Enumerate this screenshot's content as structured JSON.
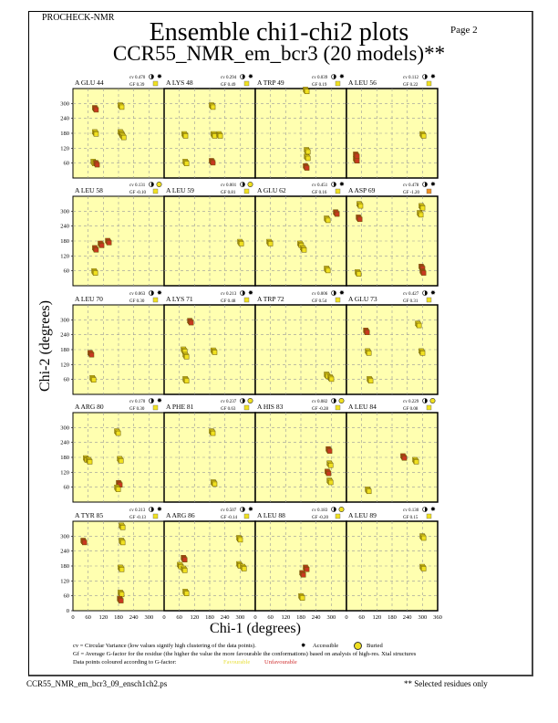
{
  "header": {
    "program": "PROCHECK-NMR",
    "page": "Page  2",
    "title": "Ensemble chi1-chi2 plots",
    "subtitle": "CCR55_NMR_em_bcr3 (20 models)**"
  },
  "colors": {
    "background": "#ffffb0",
    "favourable": "#f0e020",
    "unfavourable": "#c83820",
    "gf_good": "#f0e020",
    "gf_bad": "#f09020"
  },
  "chart_data": {
    "type": "scatter",
    "xlabel": "Chi-1 (degrees)",
    "ylabel": "Chi-2 (degrees)",
    "xlim": [
      0,
      360
    ],
    "ylim": [
      0,
      360
    ],
    "yticks": [
      0,
      60,
      120,
      180,
      240,
      300
    ],
    "xticks": [
      0,
      60,
      120,
      180,
      240,
      300,
      360
    ],
    "grid": true,
    "panels": [
      {
        "residue": "A GLU 44",
        "cv": "cv 0.470",
        "gf": "GF 0.39",
        "access": "accessible",
        "gfq": "good",
        "points": [
          [
            86,
            281,
            "r"
          ],
          [
            86,
            184,
            "y"
          ],
          [
            80,
            65,
            "y"
          ],
          [
            90,
            60,
            "r"
          ],
          [
            187,
            292,
            "y"
          ],
          [
            187,
            184,
            "y"
          ],
          [
            195,
            170,
            "y"
          ]
        ]
      },
      {
        "residue": "A LYS 48",
        "cv": "cv 0.294",
        "gf": "GF 0.49",
        "access": "accessible",
        "gfq": "good",
        "points": [
          [
            79,
            176,
            "y"
          ],
          [
            83,
            65,
            "y"
          ],
          [
            187,
            292,
            "y"
          ],
          [
            194,
            176,
            "y"
          ],
          [
            187,
            68,
            "r"
          ],
          [
            216,
            176,
            "y"
          ]
        ]
      },
      {
        "residue": "A TRP 49",
        "cv": "cv 0.039",
        "gf": "GF 0.19",
        "access": "accessible",
        "gfq": "good",
        "points": [
          [
            198,
            355,
            "y"
          ],
          [
            202,
            86,
            "y"
          ],
          [
            198,
            47,
            "r"
          ],
          [
            202,
            112,
            "y"
          ]
        ]
      },
      {
        "residue": "A LEU 56",
        "cv": "cv 0.112",
        "gf": "GF 0.22",
        "access": "accessible",
        "gfq": "good",
        "points": [
          [
            36,
            76,
            "r"
          ],
          [
            36,
            94,
            "r"
          ],
          [
            299,
            176,
            "y"
          ]
        ]
      },
      {
        "residue": "A LEU 58",
        "cv": "cv 0.131",
        "gf": "GF -0.10",
        "access": "buried",
        "gfq": "good",
        "points": [
          [
            86,
            151,
            "r"
          ],
          [
            108,
            169,
            "r"
          ],
          [
            137,
            180,
            "r"
          ],
          [
            83,
            58,
            "y"
          ]
        ]
      },
      {
        "residue": "A LEU 59",
        "cv": "cv 0.001",
        "gf": "GF 0.81",
        "access": "buried",
        "gfq": "good",
        "points": [
          [
            299,
            176,
            "y"
          ]
        ]
      },
      {
        "residue": "A GLU 62",
        "cv": "cv 0.451",
        "gf": "GF 0.16",
        "access": "accessible",
        "gfq": "good",
        "points": [
          [
            54,
            176,
            "y"
          ],
          [
            176,
            169,
            "y"
          ],
          [
            187,
            151,
            "y"
          ],
          [
            281,
            270,
            "y"
          ],
          [
            281,
            68,
            "y"
          ],
          [
            317,
            295,
            "r"
          ]
        ]
      },
      {
        "residue": "A ASP 69",
        "cv": "cv 0.478",
        "gf": "GF -1.20",
        "access": "accessible",
        "gfq": "bad",
        "points": [
          [
            47,
            274,
            "r"
          ],
          [
            50,
            328,
            "y"
          ],
          [
            43,
            54,
            "y"
          ],
          [
            288,
            292,
            "y"
          ],
          [
            295,
            320,
            "y"
          ],
          [
            295,
            76,
            "r"
          ],
          [
            299,
            58,
            "r"
          ]
        ]
      },
      {
        "residue": "A LEU 70",
        "cv": "cv 0.063",
        "gf": "GF 0.30",
        "access": "accessible",
        "gfq": "good",
        "points": [
          [
            68,
            166,
            "r"
          ],
          [
            76,
            65,
            "y"
          ]
        ]
      },
      {
        "residue": "A LYS 71",
        "cv": "cv 0.213",
        "gf": "GF 0.48",
        "access": "accessible",
        "gfq": "good",
        "points": [
          [
            101,
            295,
            "r"
          ],
          [
            76,
            180,
            "y"
          ],
          [
            83,
            158,
            "y"
          ],
          [
            83,
            61,
            "y"
          ],
          [
            194,
            176,
            "y"
          ]
        ]
      },
      {
        "residue": "A TRP 72",
        "cv": "cv 0.006",
        "gf": "GF 0.54",
        "access": "accessible",
        "gfq": "good",
        "points": [
          [
            281,
            79,
            "y"
          ],
          [
            295,
            68,
            "y"
          ]
        ]
      },
      {
        "residue": "A GLU 73",
        "cv": "cv 0.427",
        "gf": "GF 0.31",
        "access": "accessible",
        "gfq": "good",
        "points": [
          [
            76,
            256,
            "r"
          ],
          [
            83,
            173,
            "y"
          ],
          [
            90,
            61,
            "y"
          ],
          [
            281,
            284,
            "y"
          ],
          [
            295,
            173,
            "y"
          ]
        ]
      },
      {
        "residue": "A ARG 80",
        "cv": "cv 0.170",
        "gf": "GF 0.30",
        "access": "accessible",
        "gfq": "good",
        "points": [
          [
            50,
            176,
            "y"
          ],
          [
            61,
            169,
            "y"
          ],
          [
            173,
            284,
            "y"
          ],
          [
            184,
            173,
            "y"
          ],
          [
            180,
            76,
            "r"
          ],
          [
            173,
            58,
            "y"
          ]
        ]
      },
      {
        "residue": "A PHE 81",
        "cv": "cv 0.237",
        "gf": "GF 0.63",
        "access": "buried",
        "gfq": "good",
        "points": [
          [
            187,
            284,
            "y"
          ],
          [
            194,
            79,
            "y"
          ]
        ]
      },
      {
        "residue": "A HIS 83",
        "cv": "cv 0.082",
        "gf": "GF -0.28",
        "access": "buried",
        "gfq": "good",
        "points": [
          [
            288,
            212,
            "r"
          ],
          [
            292,
            155,
            "y"
          ],
          [
            284,
            122,
            "r"
          ],
          [
            292,
            86,
            "y"
          ]
        ]
      },
      {
        "residue": "A LEU 84",
        "cv": "cv 0.229",
        "gf": "GF 0.08",
        "access": "buried",
        "gfq": "good",
        "points": [
          [
            223,
            184,
            "r"
          ],
          [
            270,
            169,
            "y"
          ],
          [
            83,
            50,
            "y"
          ]
        ]
      },
      {
        "residue": "A TYR 85",
        "cv": "cv 0.313",
        "gf": "GF -0.13",
        "access": "accessible",
        "gfq": "good",
        "points": [
          [
            40,
            281,
            "r"
          ],
          [
            191,
            342,
            "y"
          ],
          [
            191,
            281,
            "y"
          ],
          [
            187,
            173,
            "y"
          ],
          [
            187,
            72,
            "y"
          ],
          [
            184,
            47,
            "r"
          ]
        ]
      },
      {
        "residue": "A ARG 86",
        "cv": "cv 0.507",
        "gf": "GF -0.14",
        "access": "accessible",
        "gfq": "good",
        "points": [
          [
            61,
            184,
            "y"
          ],
          [
            76,
            212,
            "r"
          ],
          [
            76,
            169,
            "y"
          ],
          [
            295,
            292,
            "y"
          ],
          [
            295,
            187,
            "y"
          ],
          [
            310,
            176,
            "y"
          ],
          [
            83,
            76,
            "y"
          ]
        ]
      },
      {
        "residue": "A LEU 88",
        "cv": "cv 0.183",
        "gf": "GF -0.20",
        "access": "buried",
        "gfq": "good",
        "points": [
          [
            184,
            151,
            "r"
          ],
          [
            198,
            173,
            "r"
          ],
          [
            180,
            58,
            "y"
          ]
        ]
      },
      {
        "residue": "A LEU 89",
        "cv": "cv 0.130",
        "gf": "GF 0.15",
        "access": "accessible",
        "gfq": "good",
        "points": [
          [
            299,
            299,
            "y"
          ],
          [
            299,
            176,
            "y"
          ]
        ]
      }
    ]
  },
  "legend": {
    "cv_text": "cv = Circular Variance (low values signify high clustering of the data points).",
    "accessible": "Accessible",
    "buried": "Buried",
    "gf_text": "Gf = Average G-factor for the residue (the higher the value the more favourable the conformations) based on analysis of high-res. Xtal structures",
    "coloured_text": "Data points coloured according to G-factor:",
    "favourable": "Favourable",
    "unfavourable": "Unfavourable"
  },
  "footer": {
    "file": "CCR55_NMR_em_bcr3_09_ensch1ch2.ps",
    "note": "** Selected residues only"
  }
}
